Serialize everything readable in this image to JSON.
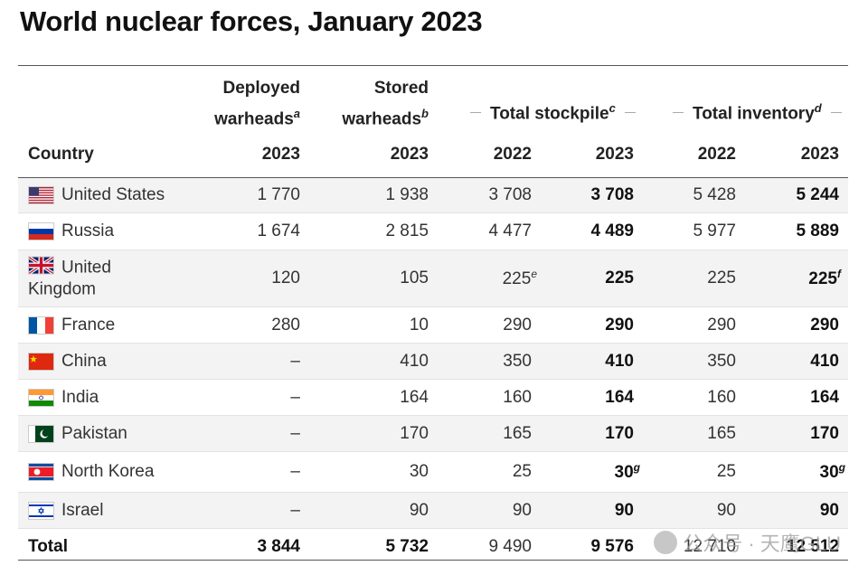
{
  "title": "World nuclear forces, January 2023",
  "headers": {
    "country": "Country",
    "deployed_l1": "Deployed",
    "deployed_l2": "warheads",
    "deployed_note": "a",
    "stored_l1": "Stored",
    "stored_l2": "warheads",
    "stored_note": "b",
    "stockpile": "Total stockpile",
    "stockpile_note": "c",
    "inventory": "Total inventory",
    "inventory_note": "d",
    "years": [
      "2023",
      "2023",
      "2022",
      "2023",
      "2022",
      "2023"
    ]
  },
  "rows": [
    {
      "country": "United States",
      "flag": "flag-us-icon",
      "deployed": "1 770",
      "stored": "1 938",
      "stock2022": "3 708",
      "stock2022_note": "",
      "stock2023": "3 708",
      "stock2023_note": "",
      "inv2022": "5 428",
      "inv2023": "5 244",
      "inv2023_note": ""
    },
    {
      "country": "Russia",
      "flag": "flag-ru-icon",
      "deployed": "1 674",
      "stored": "2 815",
      "stock2022": "4 477",
      "stock2022_note": "",
      "stock2023": "4 489",
      "stock2023_note": "",
      "inv2022": "5 977",
      "inv2023": "5 889",
      "inv2023_note": ""
    },
    {
      "country": "United Kingdom",
      "country_l1": "United",
      "country_l2": "Kingdom",
      "flag": "flag-uk-icon",
      "deployed": "120",
      "stored": "105",
      "stock2022": "225",
      "stock2022_note": "e",
      "stock2023": "225",
      "stock2023_note": "",
      "inv2022": "225",
      "inv2023": "225",
      "inv2023_note": "f"
    },
    {
      "country": "France",
      "flag": "flag-fr-icon",
      "deployed": "280",
      "stored": "10",
      "stock2022": "290",
      "stock2022_note": "",
      "stock2023": "290",
      "stock2023_note": "",
      "inv2022": "290",
      "inv2023": "290",
      "inv2023_note": ""
    },
    {
      "country": "China",
      "flag": "flag-cn-icon",
      "deployed": "–",
      "stored": "410",
      "stock2022": "350",
      "stock2022_note": "",
      "stock2023": "410",
      "stock2023_note": "",
      "inv2022": "350",
      "inv2023": "410",
      "inv2023_note": ""
    },
    {
      "country": "India",
      "flag": "flag-in-icon",
      "deployed": "–",
      "stored": "164",
      "stock2022": "160",
      "stock2022_note": "",
      "stock2023": "164",
      "stock2023_note": "",
      "inv2022": "160",
      "inv2023": "164",
      "inv2023_note": ""
    },
    {
      "country": "Pakistan",
      "flag": "flag-pk-icon",
      "deployed": "–",
      "stored": "170",
      "stock2022": "165",
      "stock2022_note": "",
      "stock2023": "170",
      "stock2023_note": "",
      "inv2022": "165",
      "inv2023": "170",
      "inv2023_note": ""
    },
    {
      "country": "North Korea",
      "flag": "flag-kp-icon",
      "deployed": "–",
      "stored": "30",
      "stock2022": "25",
      "stock2022_note": "",
      "stock2023": "30",
      "stock2023_note": "g",
      "inv2022": "25",
      "inv2023": "30",
      "inv2023_note": "g"
    },
    {
      "country": "Israel",
      "flag": "flag-il-icon",
      "deployed": "–",
      "stored": "90",
      "stock2022": "90",
      "stock2022_note": "",
      "stock2023": "90",
      "stock2023_note": "",
      "inv2022": "90",
      "inv2023": "90",
      "inv2023_note": ""
    }
  ],
  "total": {
    "label": "Total",
    "deployed": "3 844",
    "stored": "5 732",
    "stock2022": "9 490",
    "stock2023": "9 576",
    "inv2022": "12 710",
    "inv2023": "12 512"
  },
  "watermark": "公众号 · 天鹰GLU"
}
